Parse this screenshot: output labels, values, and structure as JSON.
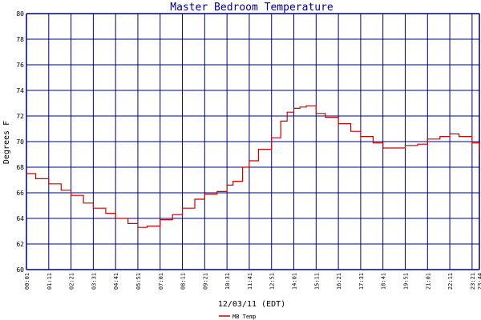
{
  "chart_data": {
    "type": "line",
    "title": "Master Bedroom Temperature",
    "xlabel": "12/03/11 (EDT)",
    "ylabel": "Degrees F",
    "ylim": [
      60,
      80
    ],
    "yticks": [
      "60",
      "62",
      "64",
      "66",
      "68",
      "70",
      "72",
      "74",
      "76",
      "78",
      "80"
    ],
    "xticks": [
      "00:01",
      "01:11",
      "02:21",
      "03:31",
      "04:41",
      "05:51",
      "07:01",
      "08:11",
      "09:21",
      "10:31",
      "11:41",
      "12:51",
      "14:01",
      "15:11",
      "16:21",
      "17:31",
      "18:41",
      "19:51",
      "21:01",
      "22:11",
      "23:21",
      "23:44"
    ],
    "grid": true,
    "legend_position": "bottom-left",
    "colors": {
      "line": "#cc0000",
      "grid": "#000080",
      "title": "#000080"
    },
    "series": [
      {
        "name": "MB Temp",
        "x": [
          "00:01",
          "00:30",
          "01:11",
          "01:50",
          "02:21",
          "03:00",
          "03:31",
          "04:10",
          "04:41",
          "05:20",
          "05:51",
          "06:20",
          "07:01",
          "07:40",
          "08:11",
          "08:50",
          "09:21",
          "10:00",
          "10:31",
          "10:50",
          "11:20",
          "11:41",
          "12:10",
          "12:51",
          "13:20",
          "13:40",
          "14:01",
          "14:20",
          "14:40",
          "15:11",
          "15:40",
          "16:21",
          "17:00",
          "17:31",
          "18:10",
          "18:41",
          "19:20",
          "19:51",
          "20:30",
          "21:01",
          "21:40",
          "22:11",
          "22:40",
          "23:21",
          "23:44"
        ],
        "y": [
          67.5,
          67.1,
          66.7,
          66.2,
          65.8,
          65.2,
          64.8,
          64.4,
          64.0,
          63.6,
          63.3,
          63.4,
          63.9,
          64.3,
          64.8,
          65.5,
          65.9,
          66.1,
          66.6,
          66.9,
          68.0,
          68.5,
          69.4,
          70.3,
          71.6,
          72.3,
          72.6,
          72.7,
          72.8,
          72.2,
          71.9,
          71.4,
          70.8,
          70.4,
          69.9,
          69.5,
          69.5,
          69.7,
          69.8,
          70.2,
          70.4,
          70.6,
          70.4,
          69.9,
          69.3
        ]
      }
    ]
  }
}
